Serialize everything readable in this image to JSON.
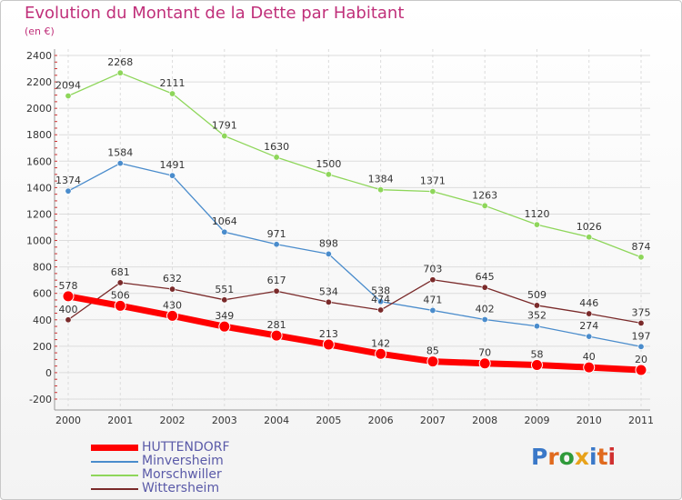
{
  "title": "Evolution du Montant de la Dette par Habitant",
  "subtitle": "(en €)",
  "logo": {
    "text": "Proxiti",
    "colors": [
      "#3a78c8",
      "#e06a1e",
      "#2f9a3a",
      "#e8a21a",
      "#3a78c8",
      "#e06a1e",
      "#d03030"
    ]
  },
  "chart_data": {
    "type": "line",
    "x": [
      "2000",
      "2001",
      "2002",
      "2003",
      "2004",
      "2005",
      "2006",
      "2007",
      "2008",
      "2009",
      "2010",
      "2011"
    ],
    "ylim": [
      -200,
      2400
    ],
    "yticks": [
      "-200",
      "0",
      "200",
      "400",
      "600",
      "800",
      "1000",
      "1200",
      "1400",
      "1600",
      "1800",
      "2000",
      "2200",
      "2400"
    ],
    "grid": true,
    "legend_position": "bottom-left",
    "series": [
      {
        "name": "Minversheim",
        "color": "#4a8ccc",
        "values": [
          1374,
          1584,
          1491,
          1064,
          971,
          898,
          538,
          471,
          402,
          352,
          274,
          197
        ],
        "labels": [
          "1374",
          "1584",
          "1491",
          "1064",
          "971",
          "898",
          "538",
          "471",
          "402",
          "352",
          "274",
          "197"
        ]
      },
      {
        "name": "Morschwiller",
        "color": "#8ed65a",
        "values": [
          2094,
          2268,
          2111,
          1791,
          1630,
          1500,
          1384,
          1371,
          1263,
          1120,
          1026,
          874
        ],
        "labels": [
          "2094",
          "2268",
          "2111",
          "1791",
          "1630",
          "1500",
          "1384",
          "1371",
          "1263",
          "1120",
          "1026",
          "874"
        ]
      },
      {
        "name": "Wittersheim",
        "color": "#7a2a2a",
        "values": [
          400,
          681,
          632,
          551,
          617,
          534,
          474,
          703,
          645,
          509,
          446,
          375
        ],
        "labels": [
          "400",
          "681",
          "632",
          "551",
          "617",
          "534",
          "474",
          "703",
          "645",
          "509",
          "446",
          "375"
        ]
      },
      {
        "name": "HUTTENDORF",
        "color": "#ff0000",
        "values": [
          578,
          506,
          430,
          349,
          281,
          213,
          142,
          85,
          70,
          58,
          40,
          20
        ],
        "labels": [
          "578",
          "506",
          "430",
          "349",
          "281",
          "213",
          "142",
          "85",
          "70",
          "58",
          "40",
          "20"
        ]
      }
    ]
  }
}
